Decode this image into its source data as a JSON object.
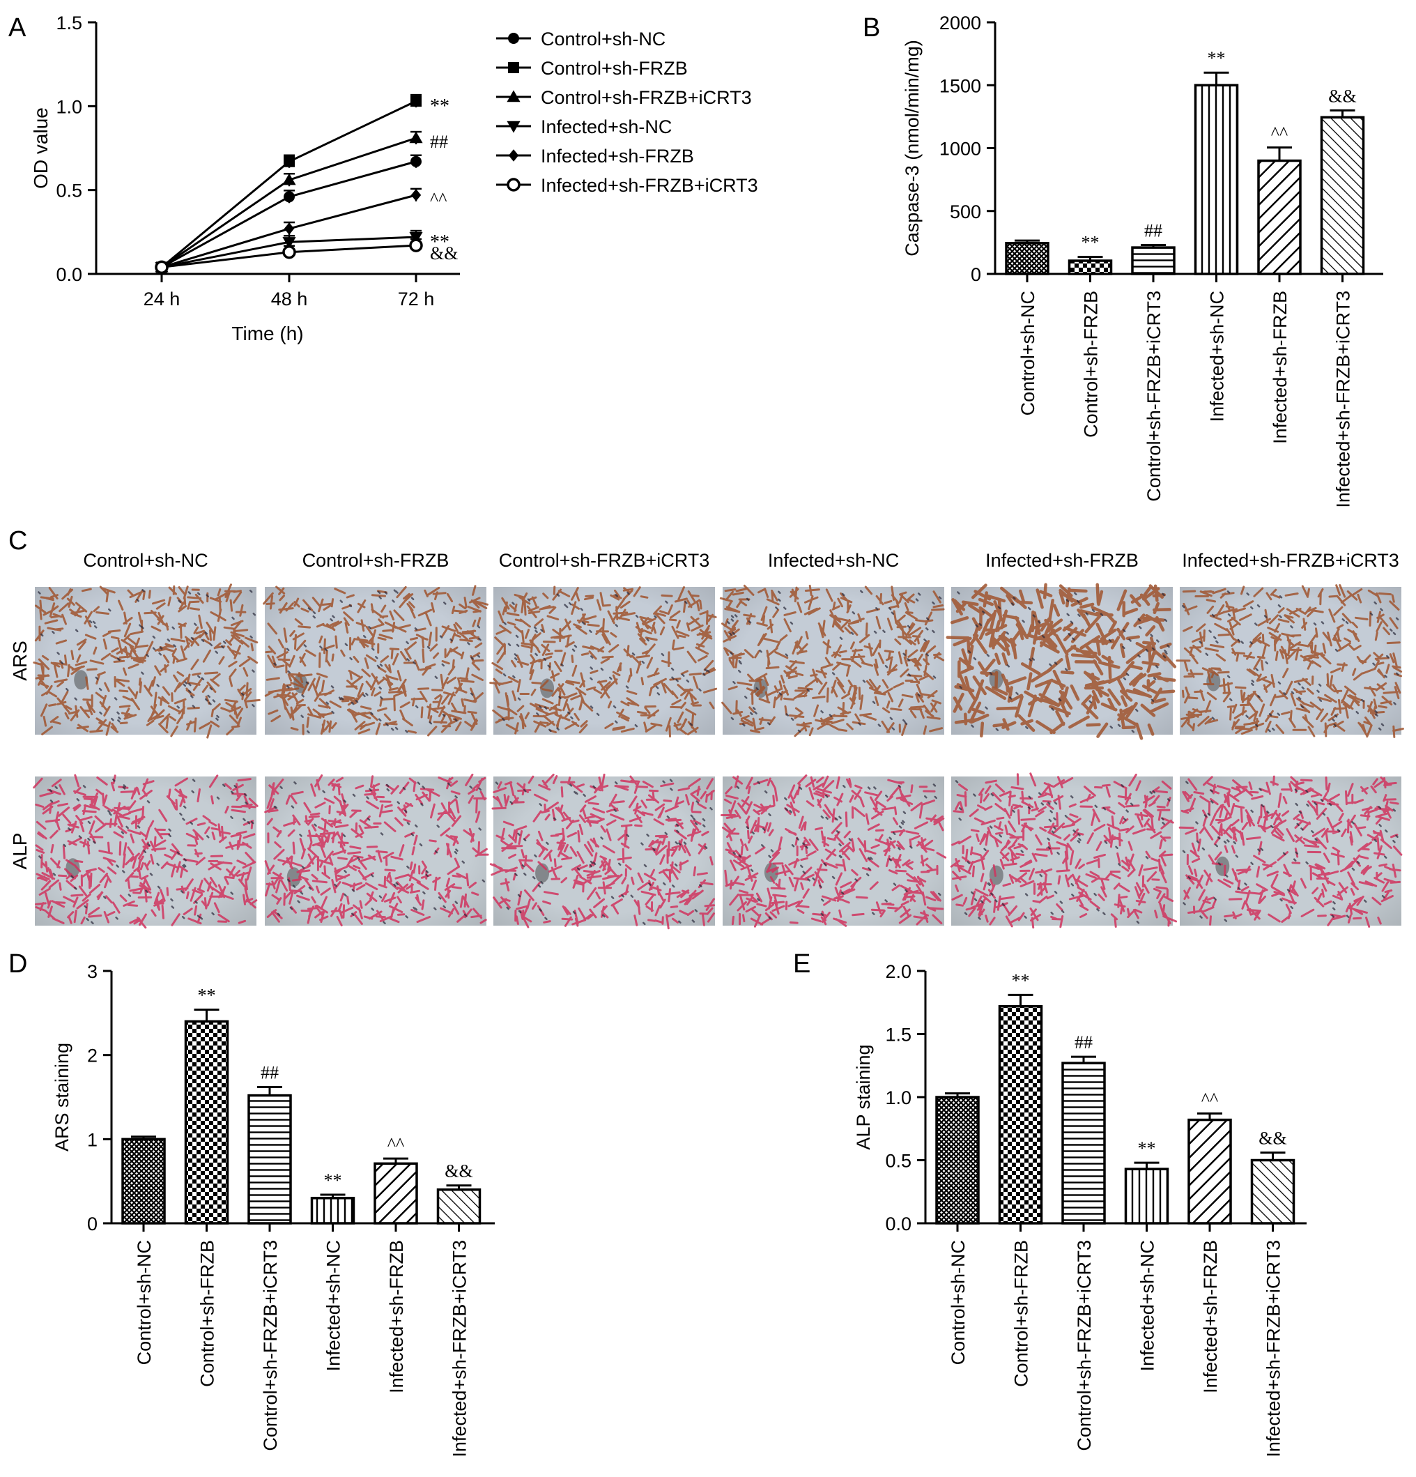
{
  "panels": {
    "a": "A",
    "b": "B",
    "c": "C",
    "d": "D",
    "e": "E"
  },
  "groups": [
    "Control+sh-NC",
    "Control+sh-FRZB",
    "Control+sh-FRZB+iCRT3",
    "Infected+sh-NC",
    "Infected+sh-FRZB",
    "Infected+sh-FRZB+iCRT3"
  ],
  "micrographs": {
    "row_labels": [
      "ARS",
      "ALP"
    ],
    "column_labels": [
      "Control+sh-NC",
      "Control+sh-FRZB",
      "Control+sh-FRZB+iCRT3",
      "Infected+sh-NC",
      "Infected+sh-FRZB",
      "Infected+sh-FRZB+iCRT3"
    ]
  },
  "chart_data": [
    {
      "panel": "A",
      "type": "line",
      "xlabel": "Time (h)",
      "ylabel": "OD value",
      "categories": [
        "24 h",
        "48 h",
        "72 h"
      ],
      "ylim": [
        0.0,
        1.5
      ],
      "yticks": [
        "0.0",
        "0.5",
        "1.0",
        "1.5"
      ],
      "legend_position": "right",
      "series": [
        {
          "name": "Control+sh-NC",
          "marker": "circle",
          "values": [
            0.04,
            0.46,
            0.67
          ],
          "annotation": ""
        },
        {
          "name": "Control+sh-FRZB",
          "marker": "square",
          "values": [
            0.04,
            0.67,
            1.03
          ],
          "annotation": "**"
        },
        {
          "name": "Control+sh-FRZB+iCRT3",
          "marker": "triangle-up",
          "values": [
            0.04,
            0.56,
            0.81
          ],
          "annotation": "##"
        },
        {
          "name": "Infected+sh-NC",
          "marker": "triangle-down",
          "values": [
            0.04,
            0.19,
            0.22
          ],
          "annotation": "**"
        },
        {
          "name": "Infected+sh-FRZB",
          "marker": "diamond",
          "values": [
            0.04,
            0.27,
            0.47
          ],
          "annotation": "^^"
        },
        {
          "name": "Infected+sh-FRZB+iCRT3",
          "marker": "open-circle",
          "values": [
            0.04,
            0.13,
            0.17
          ],
          "annotation": "&&"
        }
      ]
    },
    {
      "panel": "B",
      "type": "bar",
      "ylabel": "Caspase-3 (nmol/min/mg)",
      "categories": [
        "Control+sh-NC",
        "Control+sh-FRZB",
        "Control+sh-FRZB+iCRT3",
        "Infected+sh-NC",
        "Infected+sh-FRZB",
        "Infected+sh-FRZB+iCRT3"
      ],
      "values": [
        245,
        105,
        210,
        1500,
        900,
        1245
      ],
      "errors": [
        20,
        30,
        20,
        100,
        105,
        55
      ],
      "annotations": [
        "",
        "**",
        "##",
        "**",
        "^^",
        "&&"
      ],
      "ylim": [
        0,
        2000
      ],
      "yticks": [
        "0",
        "500",
        "1000",
        "1500",
        "2000"
      ]
    },
    {
      "panel": "D",
      "type": "bar",
      "ylabel": "ARS staining",
      "categories": [
        "Control+sh-NC",
        "Control+sh-FRZB",
        "Control+sh-FRZB+iCRT3",
        "Infected+sh-NC",
        "Infected+sh-FRZB",
        "Infected+sh-FRZB+iCRT3"
      ],
      "values": [
        1.0,
        2.4,
        1.52,
        0.3,
        0.71,
        0.4
      ],
      "errors": [
        0.03,
        0.14,
        0.1,
        0.04,
        0.06,
        0.05
      ],
      "annotations": [
        "",
        "**",
        "##",
        "**",
        "^^",
        "&&"
      ],
      "ylim": [
        0,
        3
      ],
      "yticks": [
        "0",
        "1",
        "2",
        "3"
      ]
    },
    {
      "panel": "E",
      "type": "bar",
      "ylabel": "ALP staining",
      "categories": [
        "Control+sh-NC",
        "Control+sh-FRZB",
        "Control+sh-FRZB+iCRT3",
        "Infected+sh-NC",
        "Infected+sh-FRZB",
        "Infected+sh-FRZB+iCRT3"
      ],
      "values": [
        1.0,
        1.72,
        1.27,
        0.43,
        0.82,
        0.5
      ],
      "errors": [
        0.03,
        0.09,
        0.05,
        0.05,
        0.05,
        0.06
      ],
      "annotations": [
        "",
        "**",
        "##",
        "**",
        "^^",
        "&&"
      ],
      "ylim": [
        0,
        2.0
      ],
      "yticks": [
        "0.0",
        "0.5",
        "1.0",
        "1.5",
        "2.0"
      ]
    }
  ],
  "colors": {
    "ink": "#000000",
    "background": "#ffffff",
    "ars_stain": "#a0542e",
    "ars_background": "#c4ccd6",
    "alp_stain": "#d0345e",
    "alp_background": "#c5cdd3"
  }
}
